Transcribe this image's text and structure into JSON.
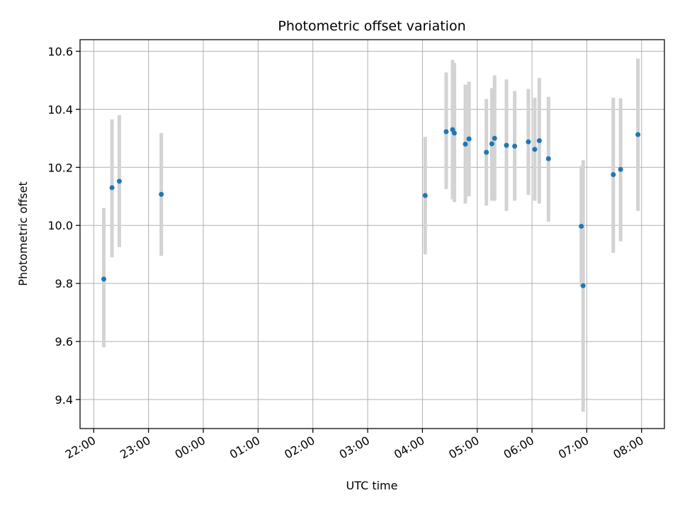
{
  "chart_data": {
    "type": "scatter",
    "title": "Photometric offset variation",
    "xlabel": "UTC time",
    "ylabel": "Photometric offset",
    "x_axis_kind": "time",
    "x_range": [
      "21:45",
      "08:25"
    ],
    "x_ticks": [
      "22:00",
      "23:00",
      "00:00",
      "01:00",
      "02:00",
      "03:00",
      "04:00",
      "05:00",
      "06:00",
      "07:00",
      "08:00"
    ],
    "ylim": [
      9.3,
      10.64
    ],
    "y_ticks": [
      "9.4",
      "9.6",
      "9.8",
      "10.0",
      "10.2",
      "10.4",
      "10.6"
    ],
    "grid": true,
    "marker_color": "#1f77b4",
    "errorbar_color": "#d3d3d3",
    "points": [
      {
        "x": "22:11",
        "y": 9.815,
        "err_low": 9.58,
        "err_high": 10.06
      },
      {
        "x": "22:20",
        "y": 10.13,
        "err_low": 9.89,
        "err_high": 10.365
      },
      {
        "x": "22:28",
        "y": 10.152,
        "err_low": 9.925,
        "err_high": 10.38
      },
      {
        "x": "23:14",
        "y": 10.107,
        "err_low": 9.895,
        "err_high": 10.318
      },
      {
        "x": "04:03",
        "y": 10.103,
        "err_low": 9.9,
        "err_high": 10.305
      },
      {
        "x": "04:26",
        "y": 10.323,
        "err_low": 10.125,
        "err_high": 10.527
      },
      {
        "x": "04:33",
        "y": 10.33,
        "err_low": 10.09,
        "err_high": 10.57
      },
      {
        "x": "04:35",
        "y": 10.318,
        "err_low": 10.08,
        "err_high": 10.56
      },
      {
        "x": "04:47",
        "y": 10.28,
        "err_low": 10.075,
        "err_high": 10.485
      },
      {
        "x": "04:51",
        "y": 10.298,
        "err_low": 10.1,
        "err_high": 10.495
      },
      {
        "x": "05:10",
        "y": 10.252,
        "err_low": 10.068,
        "err_high": 10.436
      },
      {
        "x": "05:16",
        "y": 10.281,
        "err_low": 10.085,
        "err_high": 10.473
      },
      {
        "x": "05:19",
        "y": 10.3,
        "err_low": 10.085,
        "err_high": 10.517
      },
      {
        "x": "05:32",
        "y": 10.276,
        "err_low": 10.05,
        "err_high": 10.503
      },
      {
        "x": "05:41",
        "y": 10.273,
        "err_low": 10.085,
        "err_high": 10.463
      },
      {
        "x": "05:56",
        "y": 10.288,
        "err_low": 10.105,
        "err_high": 10.47
      },
      {
        "x": "06:03",
        "y": 10.262,
        "err_low": 10.085,
        "err_high": 10.44
      },
      {
        "x": "06:08",
        "y": 10.292,
        "err_low": 10.075,
        "err_high": 10.508
      },
      {
        "x": "06:18",
        "y": 10.23,
        "err_low": 10.013,
        "err_high": 10.443
      },
      {
        "x": "06:54",
        "y": 9.997,
        "err_low": 9.79,
        "err_high": 10.205
      },
      {
        "x": "06:56",
        "y": 9.792,
        "err_low": 9.358,
        "err_high": 10.225
      },
      {
        "x": "07:29",
        "y": 10.175,
        "err_low": 9.905,
        "err_high": 10.44
      },
      {
        "x": "07:37",
        "y": 10.193,
        "err_low": 9.945,
        "err_high": 10.438
      },
      {
        "x": "07:56",
        "y": 10.313,
        "err_low": 10.05,
        "err_high": 10.575
      }
    ]
  }
}
